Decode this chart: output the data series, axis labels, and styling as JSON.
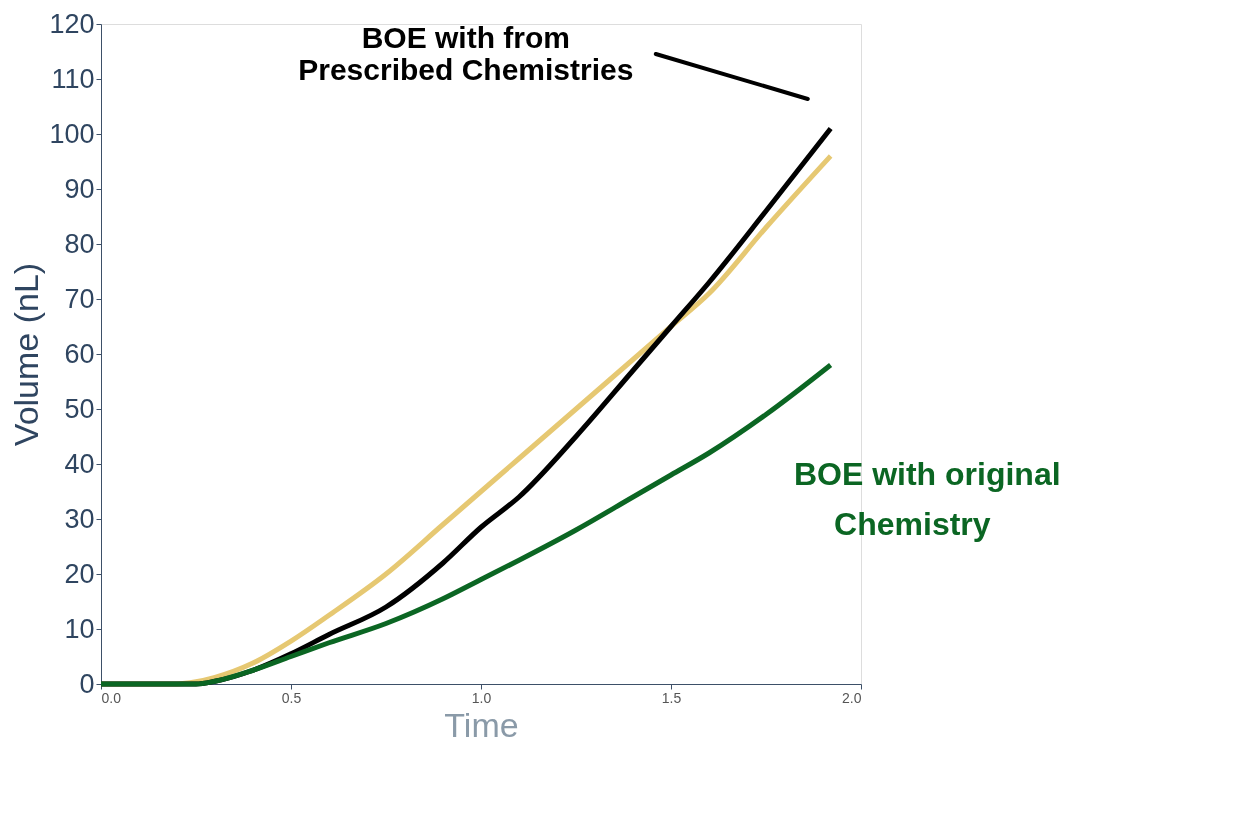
{
  "chart_data": {
    "type": "line",
    "xlabel": "Time",
    "ylabel": "Volume (nL)",
    "x": [
      0,
      0.15,
      0.2,
      0.25,
      0.3,
      0.4,
      0.5,
      0.6,
      0.75,
      0.9,
      1.0,
      1.1,
      1.25,
      1.4,
      1.5,
      1.6,
      1.75,
      1.92
    ],
    "series": [
      {
        "color": "#e6c872",
        "values": [
          0,
          0,
          0,
          0.4,
          1.2,
          3.8,
          7.8,
          12.5,
          20,
          29,
          35,
          41,
          50,
          59,
          65,
          71,
          83,
          96
        ]
      },
      {
        "color": "#000000",
        "values": [
          0,
          0,
          0,
          0,
          0.5,
          2.5,
          5.5,
          9,
          14,
          22,
          28.5,
          34,
          45,
          57,
          65,
          73,
          86,
          101
        ]
      },
      {
        "name": "BOE with original Chemistry",
        "color": "#0b6623",
        "values": [
          0,
          0,
          0,
          0,
          0.5,
          2.5,
          5,
          7.5,
          11,
          15.5,
          19,
          22.5,
          28,
          34,
          38,
          42,
          49,
          58
        ]
      }
    ],
    "annotations": [
      "BOE with from\nPrescribed Chemistries"
    ],
    "xlim": [
      0,
      2
    ],
    "ylim": [
      0,
      120
    ],
    "xticks": [
      {
        "value": 0,
        "label": "0.0"
      },
      {
        "value": 0.5,
        "label": "0.5"
      },
      {
        "value": 1,
        "label": "1.0"
      },
      {
        "value": 1.5,
        "label": "1.5"
      },
      {
        "value": 2,
        "label": "2.0"
      }
    ],
    "yticks": [
      0,
      10,
      20,
      30,
      40,
      50,
      60,
      70,
      80,
      90,
      100,
      110,
      120
    ],
    "grid": false,
    "marker": "none",
    "line_style": "solid"
  }
}
